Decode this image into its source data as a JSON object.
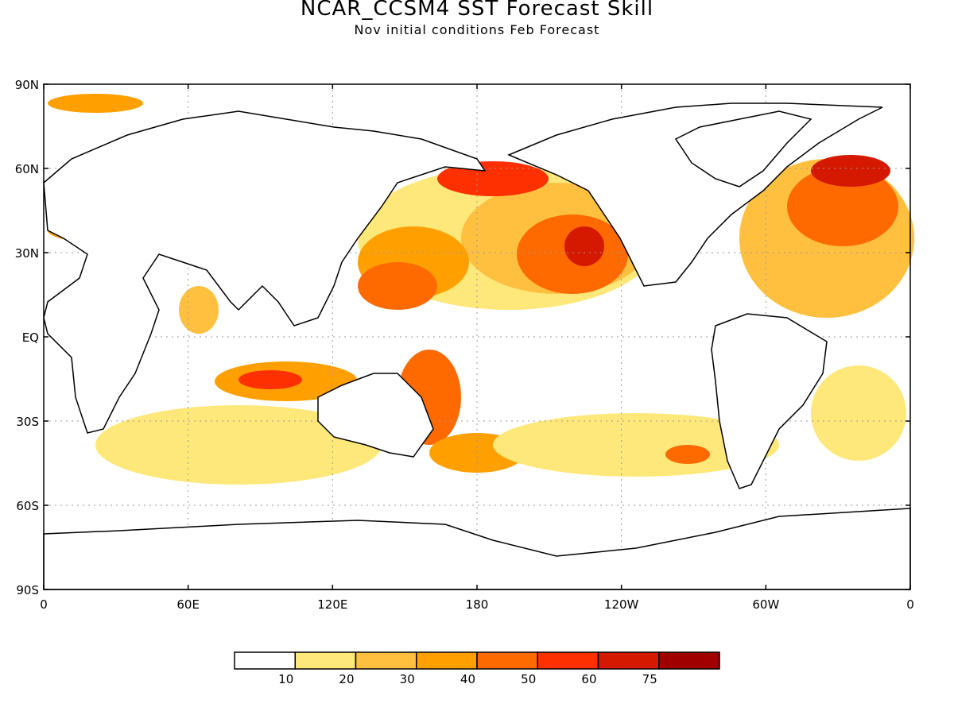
{
  "title": "NCAR_CCSM4 SST Forecast Skill",
  "subtitle": "Nov initial conditions  Feb Forecast",
  "map": {
    "lat_labels": [
      "90N",
      "60N",
      "30N",
      "EQ",
      "30S",
      "60S",
      "90S"
    ],
    "lon_labels": [
      "0",
      "60E",
      "120E",
      "180",
      "120W",
      "60W",
      "0"
    ],
    "gridlines": "dotted"
  },
  "colorbar": {
    "colors": [
      "#ffffff",
      "#ffe87a",
      "#ffc040",
      "#ffa000",
      "#ff6a00",
      "#ff3000",
      "#d51800",
      "#a00000"
    ],
    "tick_labels": [
      "10",
      "20",
      "30",
      "40",
      "50",
      "60",
      "75"
    ]
  }
}
